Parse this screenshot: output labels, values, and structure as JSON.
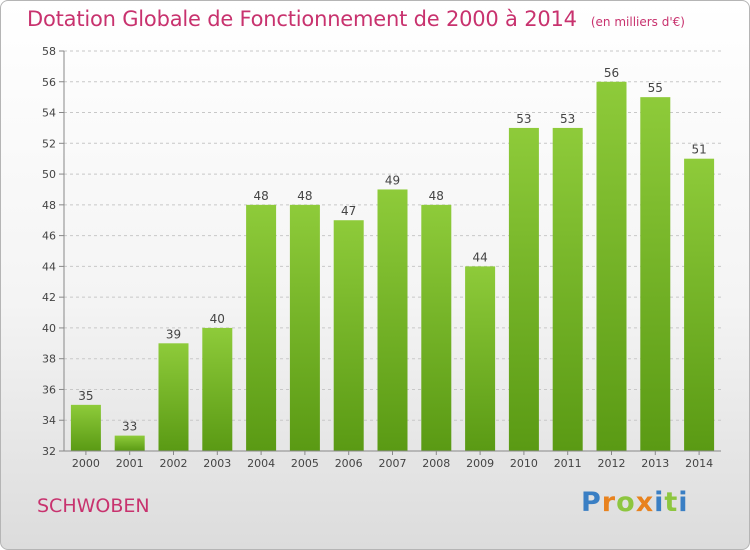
{
  "title": "Dotation Globale de Fonctionnement de 2000 à 2014",
  "subtitle": "(en milliers d'€)",
  "commune": "SCHWOBEN",
  "logo": {
    "letters": [
      "P",
      "r",
      "o",
      "x",
      "i",
      "t",
      "i"
    ],
    "colors": [
      "#3a7fc4",
      "#e8821e",
      "#8dc63f",
      "#e8821e",
      "#3a7fc4",
      "#8dc63f",
      "#3a7fc4"
    ]
  },
  "colors": {
    "title": "#c8326e",
    "bar_top": "#8ecb3a",
    "bar_bottom": "#5a9a14",
    "grid": "#c8c8c8"
  },
  "chart_data": {
    "type": "bar",
    "categories": [
      "2000",
      "2001",
      "2002",
      "2003",
      "2004",
      "2005",
      "2006",
      "2007",
      "2008",
      "2009",
      "2010",
      "2011",
      "2012",
      "2013",
      "2014"
    ],
    "values": [
      35,
      33,
      39,
      40,
      48,
      48,
      47,
      49,
      48,
      44,
      53,
      53,
      56,
      55,
      51
    ],
    "title": "Dotation Globale de Fonctionnement de 2000 à 2014",
    "ylim": [
      32,
      58
    ],
    "yticks": [
      32,
      34,
      36,
      38,
      40,
      42,
      44,
      46,
      48,
      50,
      52,
      54,
      56,
      58
    ],
    "grid": true,
    "data_labels": true
  }
}
